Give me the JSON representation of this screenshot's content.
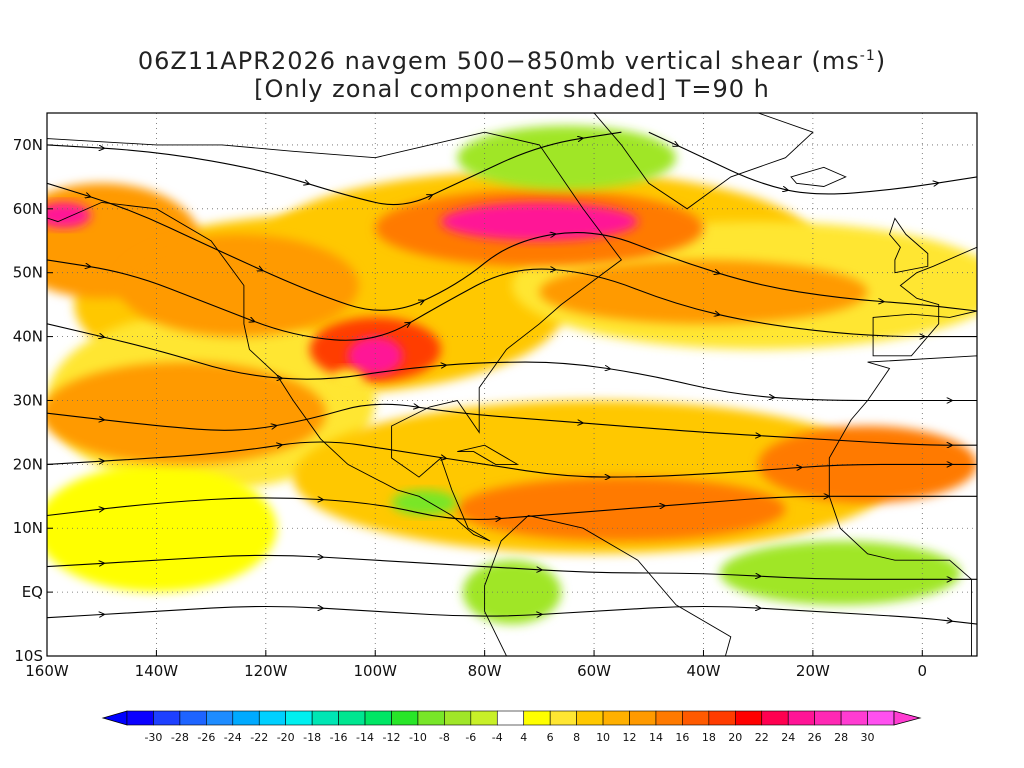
{
  "title": {
    "line1_prefix": "06Z11APR2026 navgem 500−850mb vertical shear (ms",
    "line1_superscript": "-1",
    "line1_suffix": ")",
    "line2": "[Only zonal component shaded] T=90 h"
  },
  "map": {
    "projection": "lat-lon",
    "lon_range": [
      -160,
      10
    ],
    "lat_range": [
      -10,
      75
    ],
    "lon_ticks": [
      {
        "value": -160,
        "label": "160W"
      },
      {
        "value": -140,
        "label": "140W"
      },
      {
        "value": -120,
        "label": "120W"
      },
      {
        "value": -100,
        "label": "100W"
      },
      {
        "value": -80,
        "label": "80W"
      },
      {
        "value": -60,
        "label": "60W"
      },
      {
        "value": -40,
        "label": "40W"
      },
      {
        "value": -20,
        "label": "20W"
      },
      {
        "value": 0,
        "label": "0"
      }
    ],
    "lat_ticks": [
      {
        "value": -10,
        "label": "10S"
      },
      {
        "value": 0,
        "label": "EQ"
      },
      {
        "value": 10,
        "label": "10N"
      },
      {
        "value": 20,
        "label": "20N"
      },
      {
        "value": 30,
        "label": "30N"
      },
      {
        "value": 40,
        "label": "40N"
      },
      {
        "value": 50,
        "label": "50N"
      },
      {
        "value": 60,
        "label": "60N"
      },
      {
        "value": 70,
        "label": "70N"
      }
    ],
    "grid": "dotted"
  },
  "colorbar": {
    "labels": [
      "-30",
      "-28",
      "-26",
      "-24",
      "-22",
      "-20",
      "-18",
      "-16",
      "-14",
      "-12",
      "-10",
      "-8",
      "-6",
      "-4",
      "4",
      "6",
      "8",
      "10",
      "12",
      "14",
      "16",
      "18",
      "20",
      "22",
      "24",
      "26",
      "28",
      "30"
    ],
    "colors": [
      "#0a00ff",
      "#1e40ff",
      "#1e64ff",
      "#1e8cff",
      "#00aaff",
      "#00d0ff",
      "#00f0f0",
      "#00e6b4",
      "#00e690",
      "#00e664",
      "#28e628",
      "#78e628",
      "#a0e628",
      "#c8f028",
      "#ffffff",
      "#ffff00",
      "#ffe632",
      "#ffc800",
      "#ffb000",
      "#ff9a00",
      "#ff7a00",
      "#ff5a00",
      "#ff3c00",
      "#ff0000",
      "#ff0050",
      "#ff1496",
      "#ff28b4",
      "#ff3cd2",
      "#ff50f0"
    ],
    "under_color": "#0000ff",
    "over_color": "#ff3cd2"
  },
  "shear_patches": [
    {
      "lon": -110,
      "lat": 45,
      "rx": 45,
      "ry": 14,
      "value": 10
    },
    {
      "lon": -70,
      "lat": 55,
      "rx": 50,
      "ry": 11,
      "value": 10
    },
    {
      "lon": -30,
      "lat": 48,
      "rx": 45,
      "ry": 10,
      "value": 9
    },
    {
      "lon": -130,
      "lat": 30,
      "rx": 30,
      "ry": 14,
      "value": 9
    },
    {
      "lon": -60,
      "lat": 18,
      "rx": 55,
      "ry": 12,
      "value": 10
    },
    {
      "lon": -140,
      "lat": 10,
      "rx": 22,
      "ry": 10,
      "value": 7
    },
    {
      "lon": -150,
      "lat": 55,
      "rx": 18,
      "ry": 9,
      "value": 14
    },
    {
      "lon": -125,
      "lat": 48,
      "rx": 22,
      "ry": 8,
      "value": 14
    },
    {
      "lon": -135,
      "lat": 28,
      "rx": 26,
      "ry": 8,
      "value": 15
    },
    {
      "lon": -70,
      "lat": 57,
      "rx": 30,
      "ry": 6,
      "value": 16
    },
    {
      "lon": -40,
      "lat": 47,
      "rx": 30,
      "ry": 5,
      "value": 15
    },
    {
      "lon": -55,
      "lat": 13,
      "rx": 30,
      "ry": 5,
      "value": 16
    },
    {
      "lon": -10,
      "lat": 20,
      "rx": 20,
      "ry": 6,
      "value": 17
    },
    {
      "lon": -100,
      "lat": 38,
      "rx": 12,
      "ry": 5,
      "value": 20
    },
    {
      "lon": -70,
      "lat": 58,
      "rx": 18,
      "ry": 3,
      "value": 26
    },
    {
      "lon": -100,
      "lat": 37,
      "rx": 5,
      "ry": 3,
      "value": 27
    },
    {
      "lon": -157,
      "lat": 59,
      "rx": 5,
      "ry": 2,
      "value": 27
    },
    {
      "lon": -65,
      "lat": 68,
      "rx": 20,
      "ry": 5,
      "value": -6
    },
    {
      "lon": -75,
      "lat": 0,
      "rx": 9,
      "ry": 5,
      "value": -6
    },
    {
      "lon": -15,
      "lat": 3,
      "rx": 22,
      "ry": 5,
      "value": -6
    },
    {
      "lon": -91,
      "lat": 14,
      "rx": 6,
      "ry": 2,
      "value": -7
    },
    {
      "lon": -105,
      "lat": 33,
      "rx": 3,
      "ry": 2,
      "value": 9
    }
  ],
  "streamlines": [
    {
      "points": [
        [
          -160,
          64
        ],
        [
          -145,
          60
        ],
        [
          -130,
          54
        ],
        [
          -112,
          47
        ],
        [
          -98,
          43
        ],
        [
          -85,
          48
        ],
        [
          -75,
          55
        ],
        [
          -60,
          57
        ],
        [
          -45,
          52
        ],
        [
          -30,
          48
        ],
        [
          -15,
          46
        ],
        [
          0,
          45
        ],
        [
          10,
          44
        ]
      ]
    },
    {
      "points": [
        [
          -160,
          52
        ],
        [
          -145,
          50
        ],
        [
          -130,
          45
        ],
        [
          -115,
          40
        ],
        [
          -100,
          39
        ],
        [
          -88,
          45
        ],
        [
          -75,
          51
        ],
        [
          -60,
          50
        ],
        [
          -45,
          45
        ],
        [
          -30,
          42
        ],
        [
          -10,
          40
        ],
        [
          10,
          40
        ]
      ]
    },
    {
      "points": [
        [
          -160,
          42
        ],
        [
          -140,
          38
        ],
        [
          -125,
          34
        ],
        [
          -110,
          33
        ],
        [
          -95,
          35
        ],
        [
          -80,
          36
        ],
        [
          -65,
          36
        ],
        [
          -50,
          34
        ],
        [
          -35,
          31
        ],
        [
          -20,
          30
        ],
        [
          0,
          30
        ],
        [
          10,
          30
        ]
      ]
    },
    {
      "points": [
        [
          -160,
          28
        ],
        [
          -140,
          26
        ],
        [
          -125,
          25
        ],
        [
          -112,
          27
        ],
        [
          -100,
          30
        ],
        [
          -85,
          28
        ],
        [
          -70,
          27
        ],
        [
          -55,
          26
        ],
        [
          -40,
          25
        ],
        [
          -20,
          24
        ],
        [
          0,
          23
        ],
        [
          10,
          23
        ]
      ]
    },
    {
      "points": [
        [
          -160,
          20
        ],
        [
          -140,
          21
        ],
        [
          -125,
          22
        ],
        [
          -110,
          24
        ],
        [
          -95,
          22
        ],
        [
          -80,
          20
        ],
        [
          -65,
          18
        ],
        [
          -50,
          18
        ],
        [
          -30,
          19
        ],
        [
          -15,
          20
        ],
        [
          0,
          20
        ],
        [
          10,
          20
        ]
      ]
    },
    {
      "points": [
        [
          -160,
          12
        ],
        [
          -140,
          14
        ],
        [
          -120,
          15
        ],
        [
          -100,
          14
        ],
        [
          -85,
          11
        ],
        [
          -70,
          12
        ],
        [
          -55,
          13
        ],
        [
          -40,
          14
        ],
        [
          -25,
          15
        ],
        [
          -10,
          15
        ],
        [
          10,
          15
        ]
      ]
    },
    {
      "points": [
        [
          -160,
          4
        ],
        [
          -140,
          5
        ],
        [
          -120,
          6
        ],
        [
          -100,
          5
        ],
        [
          -80,
          4
        ],
        [
          -60,
          3
        ],
        [
          -40,
          3
        ],
        [
          -20,
          2
        ],
        [
          0,
          2
        ],
        [
          10,
          2
        ]
      ]
    },
    {
      "points": [
        [
          -160,
          -4
        ],
        [
          -140,
          -3
        ],
        [
          -120,
          -2
        ],
        [
          -100,
          -3
        ],
        [
          -80,
          -4
        ],
        [
          -60,
          -3
        ],
        [
          -40,
          -2
        ],
        [
          -20,
          -3
        ],
        [
          0,
          -4
        ],
        [
          10,
          -5
        ]
      ]
    },
    {
      "points": [
        [
          -160,
          70
        ],
        [
          -140,
          69
        ],
        [
          -120,
          66
        ],
        [
          -105,
          62
        ],
        [
          -95,
          60
        ],
        [
          -85,
          64
        ],
        [
          -70,
          70
        ],
        [
          -55,
          72
        ]
      ]
    },
    {
      "points": [
        [
          -50,
          72
        ],
        [
          -40,
          68
        ],
        [
          -30,
          64
        ],
        [
          -20,
          62
        ],
        [
          -5,
          63
        ],
        [
          10,
          65
        ]
      ]
    }
  ],
  "landmasses": [
    {
      "name": "north-america",
      "points": [
        [
          -166,
          68
        ],
        [
          -160,
          71
        ],
        [
          -140,
          70
        ],
        [
          -128,
          70
        ],
        [
          -115,
          69
        ],
        [
          -100,
          68
        ],
        [
          -90,
          70
        ],
        [
          -80,
          72
        ],
        [
          -70,
          70
        ],
        [
          -62,
          60
        ],
        [
          -55,
          52
        ],
        [
          -66,
          45
        ],
        [
          -70,
          42
        ],
        [
          -76,
          38
        ],
        [
          -81,
          32
        ],
        [
          -81,
          25
        ],
        [
          -85,
          30
        ],
        [
          -90,
          29
        ],
        [
          -97,
          26
        ],
        [
          -97,
          21
        ],
        [
          -92,
          18
        ],
        [
          -88,
          21
        ],
        [
          -86,
          16
        ],
        [
          -83,
          10
        ],
        [
          -79,
          8
        ],
        [
          -82,
          9
        ],
        [
          -86,
          12
        ],
        [
          -92,
          15
        ],
        [
          -96,
          16
        ],
        [
          -105,
          20
        ],
        [
          -110,
          24
        ],
        [
          -115,
          30
        ],
        [
          -118,
          34
        ],
        [
          -123,
          38
        ],
        [
          -124,
          42
        ],
        [
          -124,
          48
        ],
        [
          -130,
          55
        ],
        [
          -140,
          60
        ],
        [
          -150,
          61
        ],
        [
          -158,
          58
        ],
        [
          -165,
          60
        ],
        [
          -166,
          68
        ]
      ]
    },
    {
      "name": "south-america",
      "points": [
        [
          -77,
          8
        ],
        [
          -72,
          12
        ],
        [
          -62,
          10
        ],
        [
          -52,
          5
        ],
        [
          -45,
          -2
        ],
        [
          -35,
          -7
        ],
        [
          -36,
          -10
        ],
        [
          -76,
          -10
        ],
        [
          -80,
          -3
        ],
        [
          -80,
          1
        ],
        [
          -77,
          8
        ]
      ]
    },
    {
      "name": "greenland",
      "points": [
        [
          -55,
          75
        ],
        [
          -30,
          75
        ],
        [
          -20,
          72
        ],
        [
          -25,
          68
        ],
        [
          -35,
          65
        ],
        [
          -43,
          60
        ],
        [
          -50,
          64
        ],
        [
          -55,
          70
        ],
        [
          -60,
          75
        ]
      ]
    },
    {
      "name": "iceland",
      "points": [
        [
          -24,
          65
        ],
        [
          -18,
          66.5
        ],
        [
          -14,
          65
        ],
        [
          -18,
          63.5
        ],
        [
          -23,
          64
        ]
      ]
    },
    {
      "name": "africa",
      "points": [
        [
          -10,
          36
        ],
        [
          10,
          37
        ],
        [
          10,
          -10
        ],
        [
          9,
          -10
        ],
        [
          9,
          2
        ],
        [
          5,
          5
        ],
        [
          -5,
          5
        ],
        [
          -10,
          6
        ],
        [
          -15,
          10
        ],
        [
          -17,
          15
        ],
        [
          -17,
          21
        ],
        [
          -13,
          27
        ],
        [
          -10,
          30
        ],
        [
          -6,
          35
        ],
        [
          -10,
          36
        ]
      ]
    },
    {
      "name": "iberia-europe",
      "points": [
        [
          -9,
          43
        ],
        [
          -9,
          37
        ],
        [
          -2,
          37
        ],
        [
          3,
          42
        ],
        [
          3,
          45
        ],
        [
          -1,
          46
        ],
        [
          -4,
          48
        ],
        [
          -1,
          50
        ],
        [
          2,
          51
        ],
        [
          10,
          54
        ],
        [
          10,
          44
        ],
        [
          5,
          43
        ],
        [
          -2,
          43.5
        ],
        [
          -9,
          43
        ]
      ]
    },
    {
      "name": "british-isles",
      "points": [
        [
          -5,
          50
        ],
        [
          1,
          51
        ],
        [
          1,
          53
        ],
        [
          -3,
          56
        ],
        [
          -5,
          58.5
        ],
        [
          -6,
          56
        ],
        [
          -4,
          54
        ],
        [
          -5,
          52
        ]
      ]
    },
    {
      "name": "cuba",
      "points": [
        [
          -85,
          22
        ],
        [
          -80,
          23
        ],
        [
          -74,
          20
        ],
        [
          -78,
          20
        ],
        [
          -82,
          22
        ]
      ]
    }
  ]
}
